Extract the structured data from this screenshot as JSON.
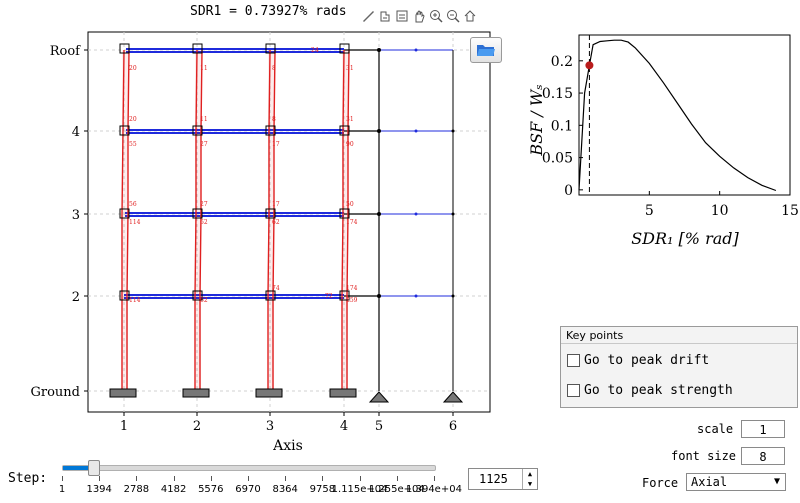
{
  "plot_title": "SDR1 = 0.73927% rads",
  "toolbar": {
    "icons": [
      "brush-icon",
      "export-icon",
      "legend-icon",
      "pan-icon",
      "zoom-in-icon",
      "zoom-out-icon",
      "home-icon"
    ]
  },
  "frame": {
    "y_labels": [
      "Roof",
      "4",
      "3",
      "2",
      "Ground"
    ],
    "x_labels": [
      "1",
      "2",
      "3",
      "4",
      "5",
      "6"
    ],
    "xlabel": "Axis",
    "node_labels": [
      "20",
      "11",
      "8",
      "24",
      "31",
      "20",
      "11",
      "8",
      "31",
      "55",
      "27",
      "17",
      "90",
      "56",
      "27",
      "17",
      "62",
      "50",
      "114",
      "62",
      "174",
      "114",
      "62",
      "74",
      "72",
      "174",
      "259"
    ],
    "accent_red": "#e02020",
    "accent_blue": "#1f2bdc"
  },
  "chart_data": {
    "type": "line",
    "xlabel": "SDR₁ [% rad]",
    "ylabel": "BSF / Wₛ",
    "x_ticks": [
      "5",
      "10",
      "15"
    ],
    "y_ticks": [
      "0",
      "0.05",
      "0.1",
      "0.15",
      "0.2"
    ],
    "xlim": [
      0,
      15
    ],
    "ylim": [
      -0.008,
      0.24
    ],
    "series": [
      {
        "x": [
          0,
          0.4,
          0.74,
          1.0,
          1.5,
          2.0,
          2.5,
          3.0,
          3.5,
          4.0,
          5.0,
          6.0,
          7.0,
          8.0,
          9.0,
          10.0,
          11.0,
          12.0,
          13.0,
          14.0
        ],
        "y": [
          0,
          0.15,
          0.193,
          0.225,
          0.23,
          0.231,
          0.232,
          0.232,
          0.229,
          0.22,
          0.196,
          0.166,
          0.134,
          0.102,
          0.073,
          0.052,
          0.034,
          0.019,
          0.007,
          -0.001
        ],
        "color": "#000000"
      }
    ],
    "marker": {
      "x": 0.74,
      "y": 0.193,
      "color": "#b91c1c"
    },
    "vline_x": 0.74
  },
  "key_points": {
    "title": "Key points",
    "options": [
      "Go to peak drift",
      "Go to peak strength"
    ]
  },
  "controls": {
    "scale_label": "scale",
    "scale_value": "1",
    "font_size_label": "font size",
    "font_size_value": "8",
    "force_label": "Force",
    "force_value": "Axial"
  },
  "step": {
    "label": "Step:",
    "value": "1125",
    "position": 0.08,
    "tick_labels": [
      "1",
      "1394",
      "2788",
      "4182",
      "5576",
      "6970",
      "8364",
      "9758",
      "1.115e+04",
      "1.255e+04",
      "1.394e+04"
    ]
  }
}
